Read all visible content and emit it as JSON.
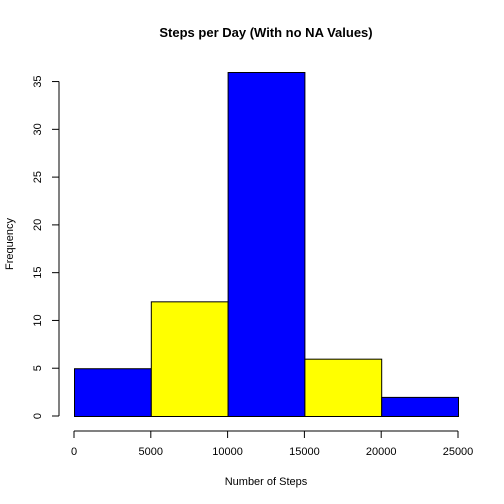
{
  "chart_data": {
    "type": "bar",
    "title": "Steps per Day (With no NA Values)",
    "xlabel": "Number of Steps",
    "ylabel": "Frequency",
    "bins": [
      {
        "x0": 0,
        "x1": 5000,
        "value": 5,
        "color": "#0000FF"
      },
      {
        "x0": 5000,
        "x1": 10000,
        "value": 12,
        "color": "#FFFF00"
      },
      {
        "x0": 10000,
        "x1": 15000,
        "value": 36,
        "color": "#0000FF"
      },
      {
        "x0": 15000,
        "x1": 20000,
        "value": 6,
        "color": "#FFFF00"
      },
      {
        "x0": 20000,
        "x1": 25000,
        "value": 2,
        "color": "#0000FF"
      }
    ],
    "xticks": [
      0,
      5000,
      10000,
      15000,
      20000,
      25000
    ],
    "yticks": [
      0,
      5,
      10,
      15,
      20,
      25,
      30,
      35
    ],
    "xlim": [
      0,
      25000
    ],
    "ylim": [
      0,
      36
    ],
    "grid": false
  }
}
